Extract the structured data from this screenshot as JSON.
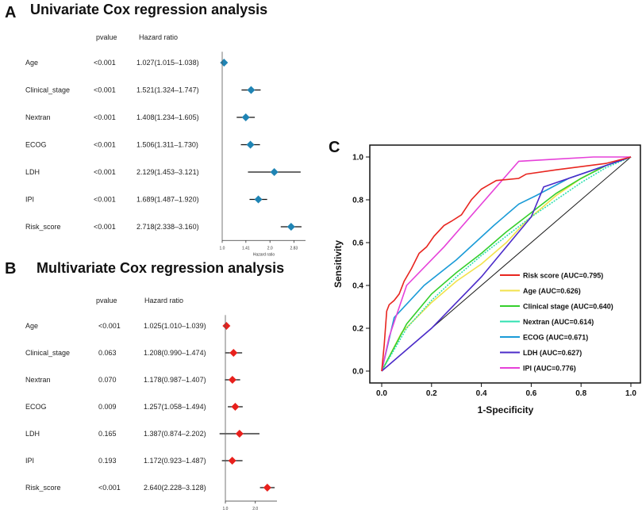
{
  "chart_data": [
    {
      "panel": "A",
      "type": "forest",
      "title": "Univariate Cox regression analysis",
      "col_pvalue": "pvalue",
      "col_hr": "Hazard ratio",
      "xlabel": "Hazard ratio",
      "xticks": [
        "1.0",
        "1.41",
        "2.0",
        "2.83"
      ],
      "marker_color": "#1f84b4",
      "rows": [
        {
          "label": "Age",
          "pvalue": "<0.001",
          "hr_text": "1.027(1.015–1.038)",
          "hr": 1.027,
          "lo": 1.015,
          "hi": 1.038
        },
        {
          "label": "Clinical_stage",
          "pvalue": "<0.001",
          "hr_text": "1.521(1.324–1.747)",
          "hr": 1.521,
          "lo": 1.324,
          "hi": 1.747
        },
        {
          "label": "Nextran",
          "pvalue": "<0.001",
          "hr_text": "1.408(1.234–1.605)",
          "hr": 1.408,
          "lo": 1.234,
          "hi": 1.605
        },
        {
          "label": "ECOG",
          "pvalue": "<0.001",
          "hr_text": "1.506(1.311–1.730)",
          "hr": 1.506,
          "lo": 1.311,
          "hi": 1.73
        },
        {
          "label": "LDH",
          "pvalue": "<0.001",
          "hr_text": "2.129(1.453–3.121)",
          "hr": 2.129,
          "lo": 1.453,
          "hi": 3.121
        },
        {
          "label": "IPI",
          "pvalue": "<0.001",
          "hr_text": "1.689(1.487–1.920)",
          "hr": 1.689,
          "lo": 1.487,
          "hi": 1.92
        },
        {
          "label": "Risk_score",
          "pvalue": "<0.001",
          "hr_text": "2.718(2.338–3.160)",
          "hr": 2.718,
          "lo": 2.338,
          "hi": 3.16
        }
      ]
    },
    {
      "panel": "B",
      "type": "forest",
      "title": "Multivariate Cox regression analysis",
      "col_pvalue": "pvalue",
      "col_hr": "Hazard ratio",
      "xlabel": "Hazard ratio",
      "xticks": [
        "1.0",
        "2.0"
      ],
      "marker_color": "#e8201c",
      "rows": [
        {
          "label": "Age",
          "pvalue": "<0.001",
          "hr_text": "1.025(1.010–1.039)",
          "hr": 1.025,
          "lo": 1.01,
          "hi": 1.039
        },
        {
          "label": "Clinical_stage",
          "pvalue": "0.063",
          "hr_text": "1.208(0.990–1.474)",
          "hr": 1.208,
          "lo": 0.99,
          "hi": 1.474
        },
        {
          "label": "Nextran",
          "pvalue": "0.070",
          "hr_text": "1.178(0.987–1.407)",
          "hr": 1.178,
          "lo": 0.987,
          "hi": 1.407
        },
        {
          "label": "ECOG",
          "pvalue": "0.009",
          "hr_text": "1.257(1.058–1.494)",
          "hr": 1.257,
          "lo": 1.058,
          "hi": 1.494
        },
        {
          "label": "LDH",
          "pvalue": "0.165",
          "hr_text": "1.387(0.874–2.202)",
          "hr": 1.387,
          "lo": 0.874,
          "hi": 2.202
        },
        {
          "label": "IPI",
          "pvalue": "0.193",
          "hr_text": "1.172(0.923–1.487)",
          "hr": 1.172,
          "lo": 0.923,
          "hi": 1.487
        },
        {
          "label": "Risk_score",
          "pvalue": "<0.001",
          "hr_text": "2.640(2.228–3.128)",
          "hr": 2.64,
          "lo": 2.228,
          "hi": 3.128
        }
      ]
    },
    {
      "panel": "C",
      "type": "line",
      "title": "",
      "xlabel": "1-Specificity",
      "ylabel": "Sensitivity",
      "xlim": [
        0,
        1
      ],
      "ylim": [
        0,
        1
      ],
      "xticks": [
        "0.0",
        "0.2",
        "0.4",
        "0.6",
        "0.8",
        "1.0"
      ],
      "yticks": [
        "0.0",
        "0.2",
        "0.4",
        "0.6",
        "0.8",
        "1.0"
      ],
      "legend_position": "bottom-right",
      "series": [
        {
          "name": "Risk score (AUC=0.795)",
          "color": "#e8251f",
          "x": [
            0,
            0.01,
            0.02,
            0.03,
            0.05,
            0.07,
            0.09,
            0.12,
            0.15,
            0.18,
            0.21,
            0.25,
            0.28,
            0.32,
            0.36,
            0.4,
            0.43,
            0.46,
            0.55,
            0.58,
            0.7,
            0.9,
            1.0
          ],
          "y": [
            0,
            0.12,
            0.28,
            0.31,
            0.33,
            0.36,
            0.42,
            0.48,
            0.55,
            0.58,
            0.63,
            0.68,
            0.7,
            0.73,
            0.8,
            0.85,
            0.87,
            0.89,
            0.9,
            0.92,
            0.94,
            0.97,
            1.0
          ]
        },
        {
          "name": "Age (AUC=0.626)",
          "color": "#f2e24b",
          "x": [
            0,
            0.08,
            0.2,
            0.3,
            0.4,
            0.5,
            0.58,
            0.7,
            0.8,
            0.9,
            1.0
          ],
          "y": [
            0,
            0.18,
            0.32,
            0.42,
            0.5,
            0.6,
            0.7,
            0.82,
            0.9,
            0.96,
            1.0
          ]
        },
        {
          "name": "Clinical stage (AUC=0.640)",
          "color": "#35cf2c",
          "x": [
            0,
            0.1,
            0.2,
            0.3,
            0.4,
            0.5,
            0.6,
            0.7,
            0.8,
            0.9,
            1.0
          ],
          "y": [
            0,
            0.22,
            0.36,
            0.46,
            0.55,
            0.65,
            0.74,
            0.83,
            0.9,
            0.96,
            1.0
          ]
        },
        {
          "name": "Nextran (AUC=0.614)",
          "color": "#2ee0b0",
          "x": [
            0,
            0.1,
            0.2,
            0.3,
            0.4,
            0.5,
            0.6,
            0.7,
            0.8,
            0.9,
            1.0
          ],
          "y": [
            0,
            0.2,
            0.33,
            0.44,
            0.54,
            0.63,
            0.72,
            0.8,
            0.88,
            0.95,
            1.0
          ]
        },
        {
          "name": "ECOG (AUC=0.671)",
          "color": "#1a9bd7",
          "x": [
            0,
            0.05,
            0.17,
            0.3,
            0.45,
            0.55,
            0.62,
            0.75,
            0.9,
            1.0
          ],
          "y": [
            0,
            0.25,
            0.4,
            0.52,
            0.68,
            0.78,
            0.82,
            0.9,
            0.96,
            1.0
          ]
        },
        {
          "name": "LDH (AUC=0.627)",
          "color": "#4b2bc9",
          "x": [
            0,
            0.1,
            0.2,
            0.3,
            0.4,
            0.5,
            0.6,
            0.65,
            0.8,
            0.9,
            1.0
          ],
          "y": [
            0,
            0.1,
            0.2,
            0.32,
            0.44,
            0.58,
            0.72,
            0.86,
            0.92,
            0.96,
            1.0
          ]
        },
        {
          "name": "IPI (AUC=0.776)",
          "color": "#e641d9",
          "x": [
            0,
            0.03,
            0.1,
            0.25,
            0.4,
            0.55,
            0.7,
            0.85,
            1.0
          ],
          "y": [
            0,
            0.16,
            0.4,
            0.58,
            0.78,
            0.98,
            0.99,
            1.0,
            1.0
          ]
        },
        {
          "name": "reference",
          "color": "#1a1a1a",
          "x": [
            0,
            1
          ],
          "y": [
            0,
            1
          ]
        }
      ]
    }
  ],
  "panel_letters": [
    "A",
    "B",
    "C"
  ]
}
